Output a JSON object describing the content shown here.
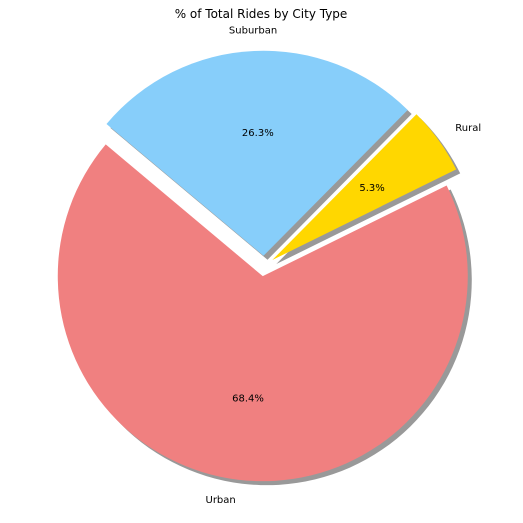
{
  "chart_data": {
    "type": "pie",
    "title": "% of Total Rides by City Type",
    "slices": [
      {
        "label": "Urban",
        "value": 68.4,
        "pct_text": "68.4%",
        "color": "#f08080",
        "explode": 0.05
      },
      {
        "label": "Rural",
        "value": 5.3,
        "pct_text": "5.3%",
        "color": "#ffd700",
        "explode": 0.05
      },
      {
        "label": "Suburban",
        "value": 26.3,
        "pct_text": "26.3%",
        "color": "#87cefa",
        "explode": 0.05
      }
    ],
    "start_angle_deg": 140,
    "shadow": true,
    "shadow_color": "#999999"
  }
}
